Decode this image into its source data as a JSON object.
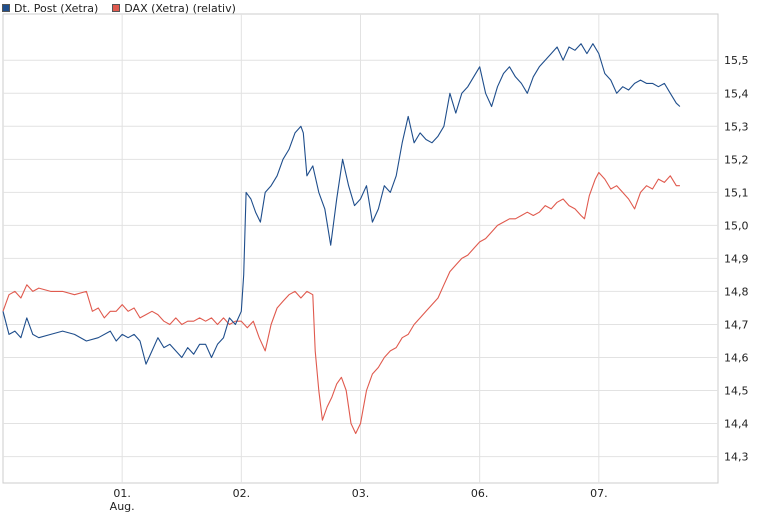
{
  "legend": [
    {
      "label": "Dt. Post (Xetra)",
      "color": "#1f4e8c"
    },
    {
      "label": "DAX (Xetra) (relativ)",
      "color": "#e05a4e"
    }
  ],
  "chart_data": {
    "type": "line",
    "ylim": [
      14.22,
      15.64
    ],
    "yticks": [
      14.3,
      14.4,
      14.5,
      14.6,
      14.7,
      14.8,
      14.9,
      15.0,
      15.1,
      15.2,
      15.3,
      15.4,
      15.5
    ],
    "ytick_labels": [
      "14,3",
      "14,4",
      "14,5",
      "14,6",
      "14,7",
      "14,8",
      "14,9",
      "15,0",
      "15,1",
      "15,2",
      "15,3",
      "15,4",
      "15,5"
    ],
    "xlim": [
      0,
      6
    ],
    "xticks": [
      {
        "x": 1,
        "label": "01.",
        "sublabel": "Aug."
      },
      {
        "x": 2,
        "label": "02.",
        "sublabel": ""
      },
      {
        "x": 3,
        "label": "03.",
        "sublabel": ""
      },
      {
        "x": 4,
        "label": "06.",
        "sublabel": ""
      },
      {
        "x": 5,
        "label": "07.",
        "sublabel": ""
      }
    ],
    "series": [
      {
        "name": "Dt. Post (Xetra)",
        "color": "#1f4e8c",
        "points": [
          [
            0.0,
            14.74
          ],
          [
            0.05,
            14.67
          ],
          [
            0.1,
            14.68
          ],
          [
            0.15,
            14.66
          ],
          [
            0.2,
            14.72
          ],
          [
            0.25,
            14.67
          ],
          [
            0.3,
            14.66
          ],
          [
            0.4,
            14.67
          ],
          [
            0.5,
            14.68
          ],
          [
            0.6,
            14.67
          ],
          [
            0.7,
            14.65
          ],
          [
            0.8,
            14.66
          ],
          [
            0.9,
            14.68
          ],
          [
            0.95,
            14.65
          ],
          [
            1.0,
            14.67
          ],
          [
            1.05,
            14.66
          ],
          [
            1.1,
            14.67
          ],
          [
            1.15,
            14.65
          ],
          [
            1.2,
            14.58
          ],
          [
            1.25,
            14.62
          ],
          [
            1.3,
            14.66
          ],
          [
            1.35,
            14.63
          ],
          [
            1.4,
            14.64
          ],
          [
            1.45,
            14.62
          ],
          [
            1.5,
            14.6
          ],
          [
            1.55,
            14.63
          ],
          [
            1.6,
            14.61
          ],
          [
            1.65,
            14.64
          ],
          [
            1.7,
            14.64
          ],
          [
            1.75,
            14.6
          ],
          [
            1.8,
            14.64
          ],
          [
            1.85,
            14.66
          ],
          [
            1.9,
            14.72
          ],
          [
            1.95,
            14.7
          ],
          [
            2.0,
            14.74
          ],
          [
            2.02,
            14.85
          ],
          [
            2.04,
            15.1
          ],
          [
            2.08,
            15.08
          ],
          [
            2.12,
            15.04
          ],
          [
            2.16,
            15.01
          ],
          [
            2.2,
            15.1
          ],
          [
            2.25,
            15.12
          ],
          [
            2.3,
            15.15
          ],
          [
            2.35,
            15.2
          ],
          [
            2.4,
            15.23
          ],
          [
            2.45,
            15.28
          ],
          [
            2.5,
            15.3
          ],
          [
            2.52,
            15.28
          ],
          [
            2.55,
            15.15
          ],
          [
            2.6,
            15.18
          ],
          [
            2.65,
            15.1
          ],
          [
            2.7,
            15.05
          ],
          [
            2.75,
            14.94
          ],
          [
            2.8,
            15.08
          ],
          [
            2.85,
            15.2
          ],
          [
            2.9,
            15.12
          ],
          [
            2.95,
            15.06
          ],
          [
            3.0,
            15.08
          ],
          [
            3.05,
            15.12
          ],
          [
            3.1,
            15.01
          ],
          [
            3.15,
            15.05
          ],
          [
            3.2,
            15.12
          ],
          [
            3.25,
            15.1
          ],
          [
            3.3,
            15.15
          ],
          [
            3.35,
            15.25
          ],
          [
            3.4,
            15.33
          ],
          [
            3.45,
            15.25
          ],
          [
            3.5,
            15.28
          ],
          [
            3.55,
            15.26
          ],
          [
            3.6,
            15.25
          ],
          [
            3.65,
            15.27
          ],
          [
            3.7,
            15.3
          ],
          [
            3.75,
            15.4
          ],
          [
            3.8,
            15.34
          ],
          [
            3.85,
            15.4
          ],
          [
            3.9,
            15.42
          ],
          [
            3.95,
            15.45
          ],
          [
            4.0,
            15.48
          ],
          [
            4.05,
            15.4
          ],
          [
            4.1,
            15.36
          ],
          [
            4.15,
            15.42
          ],
          [
            4.2,
            15.46
          ],
          [
            4.25,
            15.48
          ],
          [
            4.3,
            15.45
          ],
          [
            4.35,
            15.43
          ],
          [
            4.4,
            15.4
          ],
          [
            4.45,
            15.45
          ],
          [
            4.5,
            15.48
          ],
          [
            4.55,
            15.5
          ],
          [
            4.6,
            15.52
          ],
          [
            4.65,
            15.54
          ],
          [
            4.7,
            15.5
          ],
          [
            4.75,
            15.54
          ],
          [
            4.8,
            15.53
          ],
          [
            4.85,
            15.55
          ],
          [
            4.9,
            15.52
          ],
          [
            4.95,
            15.55
          ],
          [
            5.0,
            15.52
          ],
          [
            5.05,
            15.46
          ],
          [
            5.1,
            15.44
          ],
          [
            5.15,
            15.4
          ],
          [
            5.2,
            15.42
          ],
          [
            5.25,
            15.41
          ],
          [
            5.3,
            15.43
          ],
          [
            5.35,
            15.44
          ],
          [
            5.4,
            15.43
          ],
          [
            5.45,
            15.43
          ],
          [
            5.5,
            15.42
          ],
          [
            5.55,
            15.43
          ],
          [
            5.6,
            15.4
          ],
          [
            5.65,
            15.37
          ],
          [
            5.68,
            15.36
          ]
        ]
      },
      {
        "name": "DAX (Xetra) (relativ)",
        "color": "#e05a4e",
        "points": [
          [
            0.0,
            14.74
          ],
          [
            0.05,
            14.79
          ],
          [
            0.1,
            14.8
          ],
          [
            0.15,
            14.78
          ],
          [
            0.2,
            14.82
          ],
          [
            0.25,
            14.8
          ],
          [
            0.3,
            14.81
          ],
          [
            0.4,
            14.8
          ],
          [
            0.5,
            14.8
          ],
          [
            0.6,
            14.79
          ],
          [
            0.7,
            14.8
          ],
          [
            0.75,
            14.74
          ],
          [
            0.8,
            14.75
          ],
          [
            0.85,
            14.72
          ],
          [
            0.9,
            14.74
          ],
          [
            0.95,
            14.74
          ],
          [
            1.0,
            14.76
          ],
          [
            1.05,
            14.74
          ],
          [
            1.1,
            14.75
          ],
          [
            1.15,
            14.72
          ],
          [
            1.2,
            14.73
          ],
          [
            1.25,
            14.74
          ],
          [
            1.3,
            14.73
          ],
          [
            1.35,
            14.71
          ],
          [
            1.4,
            14.7
          ],
          [
            1.45,
            14.72
          ],
          [
            1.5,
            14.7
          ],
          [
            1.55,
            14.71
          ],
          [
            1.6,
            14.71
          ],
          [
            1.65,
            14.72
          ],
          [
            1.7,
            14.71
          ],
          [
            1.75,
            14.72
          ],
          [
            1.8,
            14.7
          ],
          [
            1.85,
            14.72
          ],
          [
            1.9,
            14.7
          ],
          [
            1.95,
            14.71
          ],
          [
            2.0,
            14.71
          ],
          [
            2.05,
            14.69
          ],
          [
            2.1,
            14.71
          ],
          [
            2.15,
            14.66
          ],
          [
            2.2,
            14.62
          ],
          [
            2.25,
            14.7
          ],
          [
            2.3,
            14.75
          ],
          [
            2.35,
            14.77
          ],
          [
            2.4,
            14.79
          ],
          [
            2.45,
            14.8
          ],
          [
            2.5,
            14.78
          ],
          [
            2.55,
            14.8
          ],
          [
            2.6,
            14.79
          ],
          [
            2.62,
            14.62
          ],
          [
            2.65,
            14.5
          ],
          [
            2.68,
            14.41
          ],
          [
            2.72,
            14.45
          ],
          [
            2.76,
            14.48
          ],
          [
            2.8,
            14.52
          ],
          [
            2.84,
            14.54
          ],
          [
            2.88,
            14.5
          ],
          [
            2.92,
            14.4
          ],
          [
            2.96,
            14.37
          ],
          [
            3.0,
            14.4
          ],
          [
            3.05,
            14.5
          ],
          [
            3.1,
            14.55
          ],
          [
            3.15,
            14.57
          ],
          [
            3.2,
            14.6
          ],
          [
            3.25,
            14.62
          ],
          [
            3.3,
            14.63
          ],
          [
            3.35,
            14.66
          ],
          [
            3.4,
            14.67
          ],
          [
            3.45,
            14.7
          ],
          [
            3.5,
            14.72
          ],
          [
            3.55,
            14.74
          ],
          [
            3.6,
            14.76
          ],
          [
            3.65,
            14.78
          ],
          [
            3.7,
            14.82
          ],
          [
            3.75,
            14.86
          ],
          [
            3.8,
            14.88
          ],
          [
            3.85,
            14.9
          ],
          [
            3.9,
            14.91
          ],
          [
            3.95,
            14.93
          ],
          [
            4.0,
            14.95
          ],
          [
            4.05,
            14.96
          ],
          [
            4.1,
            14.98
          ],
          [
            4.15,
            15.0
          ],
          [
            4.2,
            15.01
          ],
          [
            4.25,
            15.02
          ],
          [
            4.3,
            15.02
          ],
          [
            4.35,
            15.03
          ],
          [
            4.4,
            15.04
          ],
          [
            4.45,
            15.03
          ],
          [
            4.5,
            15.04
          ],
          [
            4.55,
            15.06
          ],
          [
            4.6,
            15.05
          ],
          [
            4.65,
            15.07
          ],
          [
            4.7,
            15.08
          ],
          [
            4.75,
            15.06
          ],
          [
            4.8,
            15.05
          ],
          [
            4.85,
            15.03
          ],
          [
            4.88,
            15.02
          ],
          [
            4.92,
            15.09
          ],
          [
            4.97,
            15.14
          ],
          [
            5.0,
            15.16
          ],
          [
            5.05,
            15.14
          ],
          [
            5.1,
            15.11
          ],
          [
            5.15,
            15.12
          ],
          [
            5.2,
            15.1
          ],
          [
            5.25,
            15.08
          ],
          [
            5.3,
            15.05
          ],
          [
            5.35,
            15.1
          ],
          [
            5.4,
            15.12
          ],
          [
            5.45,
            15.11
          ],
          [
            5.5,
            15.14
          ],
          [
            5.55,
            15.13
          ],
          [
            5.6,
            15.15
          ],
          [
            5.65,
            15.12
          ],
          [
            5.68,
            15.12
          ]
        ]
      }
    ]
  }
}
